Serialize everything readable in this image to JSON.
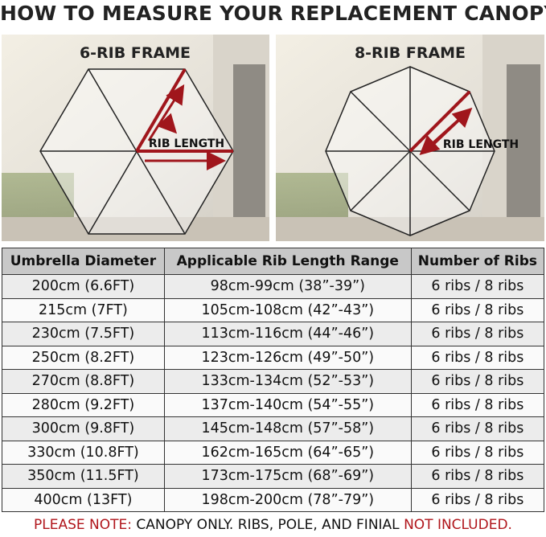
{
  "header": {
    "title": "HOW TO MEASURE YOUR REPLACEMENT CANOPY?"
  },
  "panels": [
    {
      "title": "6-RIB FRAME",
      "label": "RIB LENGTH"
    },
    {
      "title": "8-RIB FRAME",
      "label": "RIB LENGTH"
    }
  ],
  "table": {
    "columns": [
      "Umbrella Diameter",
      "Applicable Rib Length Range",
      "Number of Ribs"
    ],
    "rows": [
      [
        "200cm (6.6FT)",
        "98cm-99cm (38”-39”)",
        "6 ribs / 8 ribs"
      ],
      [
        "215cm (7FT)",
        "105cm-108cm (42”-43”)",
        "6 ribs / 8 ribs"
      ],
      [
        "230cm (7.5FT)",
        "113cm-116cm (44”-46”)",
        "6 ribs / 8 ribs"
      ],
      [
        "250cm (8.2FT)",
        "123cm-126cm (49”-50”)",
        "6 ribs / 8 ribs"
      ],
      [
        "270cm (8.8FT)",
        "133cm-134cm (52”-53”)",
        "6 ribs / 8 ribs"
      ],
      [
        "280cm (9.2FT)",
        "137cm-140cm (54”-55”)",
        "6 ribs / 8 ribs"
      ],
      [
        "300cm (9.8FT)",
        "145cm-148cm (57”-58”)",
        "6 ribs / 8 ribs"
      ],
      [
        "330cm (10.8FT)",
        "162cm-165cm (64”-65”)",
        "6 ribs / 8 ribs"
      ],
      [
        "350cm (11.5FT)",
        "173cm-175cm (68”-69”)",
        "6 ribs / 8 ribs"
      ],
      [
        "400cm (13FT)",
        "198cm-200cm (78”-79”)",
        "6 ribs / 8 ribs"
      ]
    ]
  },
  "footer": {
    "parts": [
      "PLEASE NOTE:",
      "CANOPY ONLY. RIBS, POLE, AND FINIAL",
      "NOT INCLUDED."
    ]
  }
}
